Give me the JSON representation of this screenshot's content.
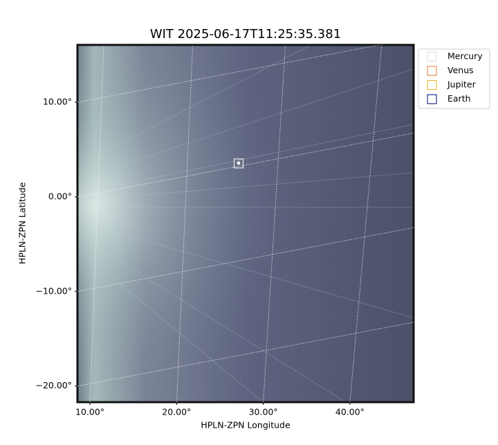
{
  "chart_data": {
    "type": "image",
    "title": "WIT 2025-06-17T11:25:35.381",
    "x_label": "HPLN-ZPN Longitude",
    "y_label": "HPLN-ZPN Latitude",
    "xlim": [
      8.56,
      47.35
    ],
    "ylim": [
      -21.7,
      16.06
    ],
    "xticks": [
      {
        "value": 10,
        "label": "10.00°"
      },
      {
        "value": 20,
        "label": "20.00°"
      },
      {
        "value": 30,
        "label": "30.00°"
      },
      {
        "value": 40,
        "label": "40.00°"
      }
    ],
    "yticks": [
      {
        "value": 10,
        "label": "10.00°"
      },
      {
        "value": 0,
        "label": "0.00°"
      },
      {
        "value": -10,
        "label": "−10.00°"
      },
      {
        "value": -20,
        "label": "−20.00°"
      }
    ],
    "grid": true,
    "legend": "upper right outside",
    "series": [
      {
        "name": "Mercury",
        "color": "#dddddd"
      },
      {
        "name": "Venus",
        "color": "#e07b39"
      },
      {
        "name": "Jupiter",
        "color": "#e8b020"
      },
      {
        "name": "Earth",
        "color": "#000080"
      }
    ]
  }
}
